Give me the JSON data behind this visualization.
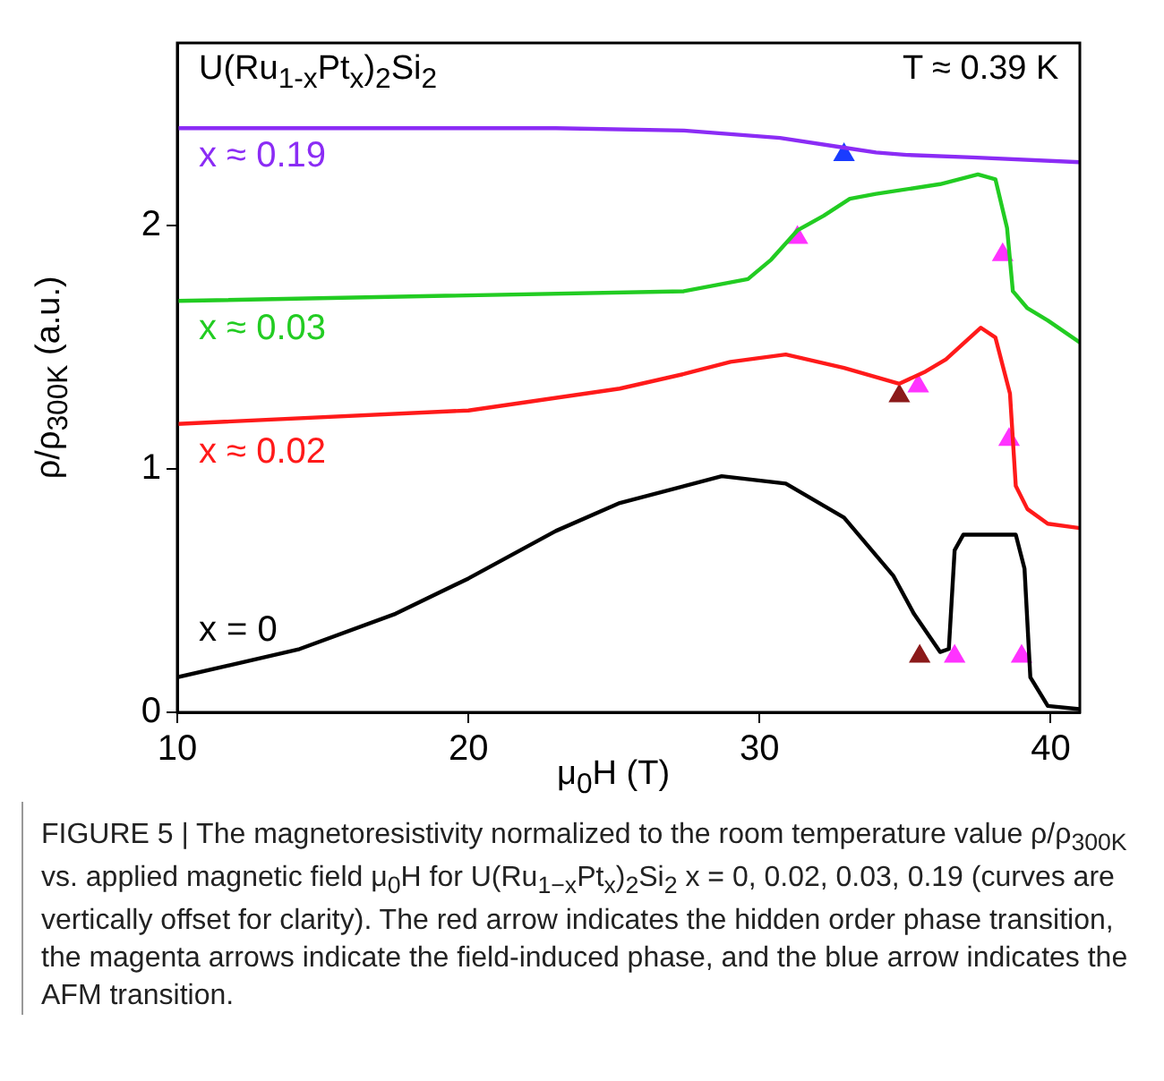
{
  "chart_data": {
    "type": "line",
    "xlabel": "μ$_{0}$H (T)",
    "ylabel": "ρ/ρ$_{300K}$ (a.u.)",
    "xlim": [
      10,
      41
    ],
    "xticks": [
      10,
      20,
      30,
      40
    ],
    "ylim": [
      0,
      2.75
    ],
    "yticks": [
      0,
      1,
      2
    ],
    "marker": "none",
    "annotations": [
      "U(Ru$_{1-x}$Pt$_{x}$)$_{2}$Si$_{2}$",
      "T ≈ 0.39 K",
      "FIGURE 5 | The magnetoresistivity normalized to the room temperature value ρ/ρ$_{300K}$ vs. applied magnetic field μ$_{0}$H for U(Ru$_{1−x}$Pt$_{x}$)$_{2}$Si$_{2}$ x = 0, 0.02, 0.03, 0.19 (curves are vertically offset for clarity). The red arrow indicates the hidden order phase transition, the magenta arrows indicate the field-induced phase, and the blue arrow indicates the AFM transition."
    ],
    "series": [
      {
        "name": "x ≈ 0.19",
        "color": "#8b2cf5",
        "x": [
          10,
          23,
          27.4,
          30.7,
          32.9,
          34,
          35.05,
          37.3,
          41
        ],
        "values": [
          2.4,
          2.4,
          2.39,
          2.36,
          2.32,
          2.3,
          2.29,
          2.28,
          2.26
        ]
      },
      {
        "name": "x ≈ 0.03",
        "color": "#22cc22",
        "x": [
          10,
          27.4,
          29.6,
          30.4,
          31.3,
          32.2,
          33.1,
          34,
          36.2,
          37.5,
          38.1,
          38.5,
          38.7,
          39.2,
          39.9,
          41
        ],
        "values": [
          1.69,
          1.73,
          1.78,
          1.86,
          1.98,
          2.04,
          2.11,
          2.13,
          2.17,
          2.21,
          2.19,
          1.99,
          1.73,
          1.66,
          1.61,
          1.52
        ]
      },
      {
        "name": "x ≈ 0.02",
        "color": "#ff1a1a",
        "x": [
          10,
          20,
          25.2,
          27.4,
          29,
          30.9,
          32.9,
          34.8,
          35.7,
          36.4,
          37.6,
          38.1,
          38.6,
          38.8,
          39.2,
          39.9,
          41
        ],
        "values": [
          1.185,
          1.24,
          1.33,
          1.39,
          1.44,
          1.47,
          1.415,
          1.35,
          1.4,
          1.45,
          1.58,
          1.54,
          1.31,
          0.93,
          0.835,
          0.775,
          0.757
        ]
      },
      {
        "name": "x = 0",
        "color": "#000000",
        "x": [
          10,
          14.2,
          17.5,
          20,
          23,
          25.2,
          28.7,
          30.9,
          32.9,
          34.6,
          35.3,
          36.2,
          36.5,
          36.7,
          37,
          38.8,
          39.1,
          39.3,
          39.9,
          41
        ],
        "values": [
          0.144,
          0.26,
          0.405,
          0.55,
          0.745,
          0.86,
          0.97,
          0.94,
          0.8,
          0.56,
          0.405,
          0.248,
          0.26,
          0.666,
          0.73,
          0.73,
          0.59,
          0.144,
          0.026,
          0.013
        ]
      },
      {
        "type": "scatter",
        "marker": "triangle",
        "color": "#8b1a1a",
        "x": [
          34.8,
          35.5
        ],
        "values": [
          1.3,
          0.23
        ]
      },
      {
        "type": "scatter",
        "marker": "triangle",
        "color": "#ff33ff",
        "x": [
          31.3,
          38.35,
          35.45,
          38.57,
          36.7,
          39
        ],
        "values": [
          1.95,
          1.88,
          1.34,
          1.12,
          0.23,
          0.23
        ]
      },
      {
        "type": "scatter",
        "marker": "triangle",
        "color": "#1a3cff",
        "x": [
          32.9
        ],
        "values": [
          2.29
        ]
      }
    ]
  }
}
